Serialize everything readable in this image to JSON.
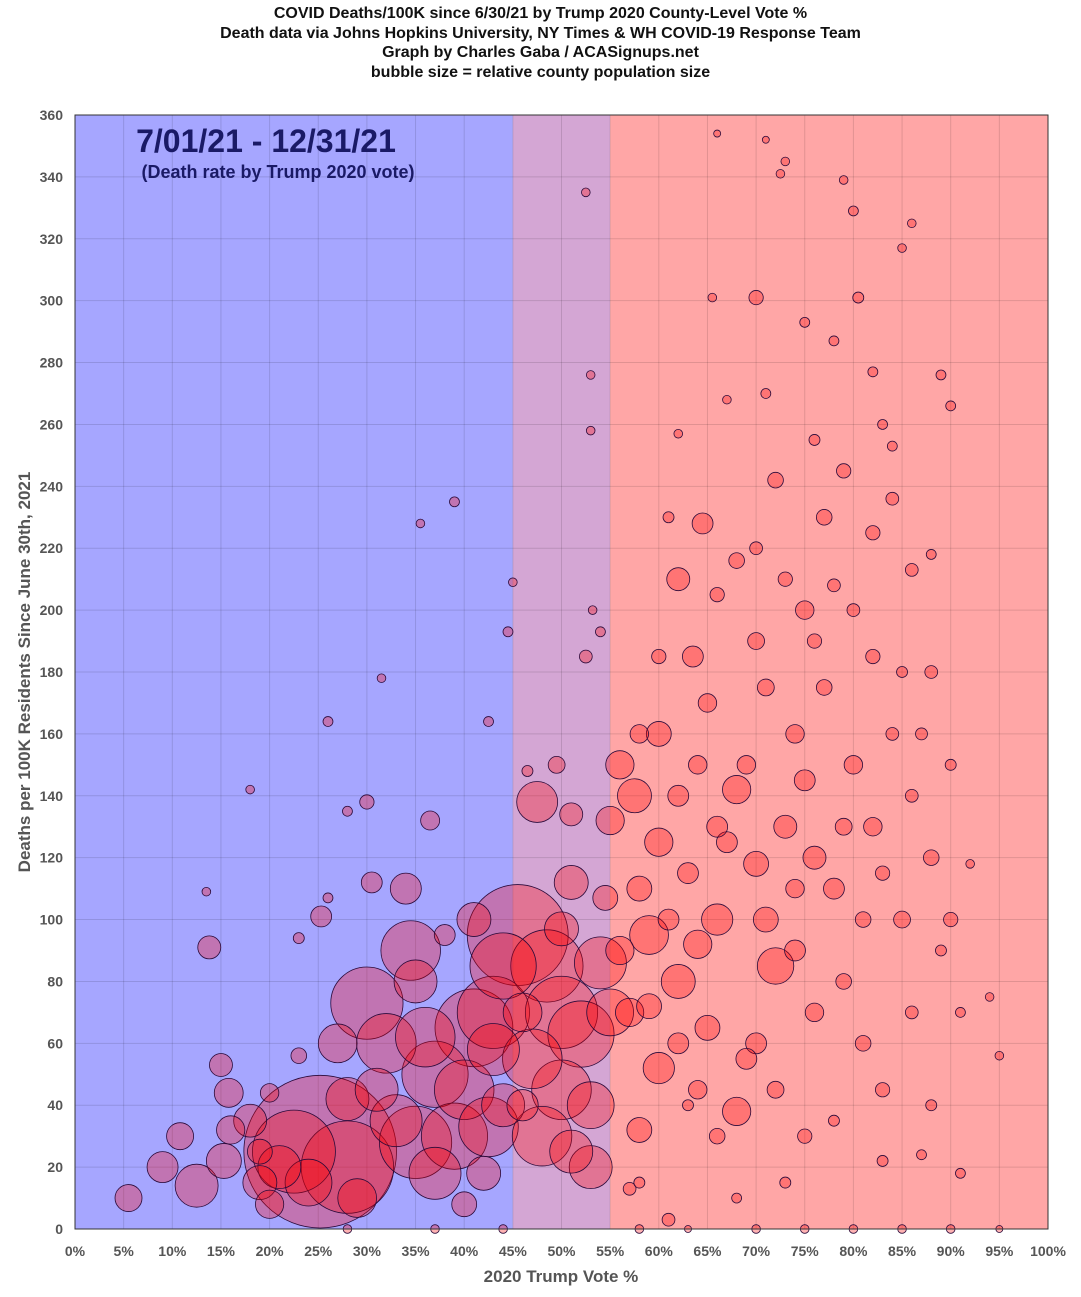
{
  "chart_data": {
    "type": "scatter",
    "title_lines": [
      "COVID Deaths/100K since 6/30/21 by Trump 2020 County-Level Vote %",
      "Death data via Johns Hopkins University, NY Times & WH COVID-19 Response Team",
      "Graph by Charles Gaba / ACASignups.net",
      "bubble size = relative county population size"
    ],
    "annotation": {
      "period": "7/01/21 - 12/31/21",
      "subtitle": "(Death rate by Trump 2020 vote)"
    },
    "xlabel": "2020 Trump Vote %",
    "ylabel": "Deaths per 100K Residents Since June 30th, 2021",
    "xlim": [
      0,
      100
    ],
    "ylim": [
      0,
      360
    ],
    "x_ticks": [
      "0%",
      "5%",
      "10%",
      "15%",
      "20%",
      "25%",
      "30%",
      "35%",
      "40%",
      "45%",
      "50%",
      "55%",
      "60%",
      "65%",
      "70%",
      "75%",
      "80%",
      "85%",
      "90%",
      "95%",
      "100%"
    ],
    "y_ticks": [
      "0",
      "20",
      "40",
      "60",
      "80",
      "100",
      "120",
      "140",
      "160",
      "180",
      "200",
      "220",
      "240",
      "260",
      "280",
      "300",
      "320",
      "340",
      "360"
    ],
    "grid": true,
    "bands": [
      {
        "from": 0,
        "to": 45,
        "color": "#a6a6ff"
      },
      {
        "from": 45,
        "to": 55,
        "color": "#d4a6d4"
      },
      {
        "from": 55,
        "to": 100,
        "color": "#ffa6a6"
      }
    ],
    "bubble_color": "#ff0000",
    "bubble_outline": "#2a0a3a",
    "point_fields": [
      "trump_vote_pct",
      "deaths_per_100k",
      "relative_population"
    ],
    "points": [
      [
        5.5,
        10,
        36
      ],
      [
        9,
        20,
        49
      ],
      [
        10.8,
        30,
        36
      ],
      [
        12.5,
        14,
        100
      ],
      [
        15.3,
        22,
        64
      ],
      [
        15.8,
        44,
        42
      ],
      [
        15,
        53,
        25
      ],
      [
        13.8,
        91,
        25
      ],
      [
        18,
        35,
        56
      ],
      [
        19,
        15,
        60
      ],
      [
        21,
        20,
        100
      ],
      [
        20,
        8,
        40
      ],
      [
        22.5,
        25,
        400
      ],
      [
        25.2,
        25,
        1400
      ],
      [
        28,
        20,
        500
      ],
      [
        28,
        42,
        100
      ],
      [
        30,
        73,
        300
      ],
      [
        30.5,
        112,
        20
      ],
      [
        34,
        110,
        49
      ],
      [
        34.5,
        90,
        200
      ],
      [
        32,
        60,
        200
      ],
      [
        35,
        28,
        300
      ],
      [
        37,
        50,
        250
      ],
      [
        37,
        18,
        150
      ],
      [
        39,
        30,
        250
      ],
      [
        40,
        45,
        200
      ],
      [
        41,
        65,
        350
      ],
      [
        42.5,
        33,
        200
      ],
      [
        43,
        58,
        150
      ],
      [
        44,
        85,
        250
      ],
      [
        45.5,
        95,
        600
      ],
      [
        36.5,
        132,
        16
      ],
      [
        30,
        138,
        8
      ],
      [
        25.3,
        101,
        20
      ],
      [
        18,
        142,
        2
      ],
      [
        13.5,
        109,
        2
      ],
      [
        26,
        164,
        3
      ],
      [
        39,
        235,
        3
      ],
      [
        35.5,
        228,
        2
      ],
      [
        31.5,
        178,
        2
      ],
      [
        42.5,
        164,
        3
      ],
      [
        28,
        135,
        3
      ],
      [
        23,
        94,
        4
      ],
      [
        26,
        107,
        3
      ],
      [
        41,
        100,
        60
      ],
      [
        38,
        95,
        20
      ],
      [
        35,
        80,
        100
      ],
      [
        43,
        70,
        300
      ],
      [
        27,
        60,
        80
      ],
      [
        31,
        45,
        100
      ],
      [
        33,
        35,
        150
      ],
      [
        36,
        62,
        200
      ],
      [
        24,
        15,
        120
      ],
      [
        29,
        10,
        80
      ],
      [
        19,
        25,
        30
      ],
      [
        16,
        32,
        40
      ],
      [
        20,
        44,
        15
      ],
      [
        23,
        56,
        10
      ],
      [
        44,
        40,
        100
      ],
      [
        42,
        18,
        60
      ],
      [
        40,
        8,
        30
      ],
      [
        47.5,
        138,
        90
      ],
      [
        48.5,
        85,
        300
      ],
      [
        50,
        70,
        300
      ],
      [
        51,
        112,
        60
      ],
      [
        52,
        63,
        250
      ],
      [
        50,
        45,
        200
      ],
      [
        48,
        30,
        200
      ],
      [
        53,
        20,
        100
      ],
      [
        54,
        86,
        150
      ],
      [
        53,
        40,
        120
      ],
      [
        46,
        70,
        80
      ],
      [
        47,
        55,
        200
      ],
      [
        49.5,
        150,
        12
      ],
      [
        51,
        134,
        25
      ],
      [
        52.5,
        185,
        6
      ],
      [
        54,
        193,
        3
      ],
      [
        44.5,
        193,
        3
      ],
      [
        46.5,
        148,
        4
      ],
      [
        52.5,
        335,
        2
      ],
      [
        53,
        276,
        2
      ],
      [
        53,
        258,
        2
      ],
      [
        53.2,
        200,
        2
      ],
      [
        45,
        209,
        2
      ],
      [
        50,
        97,
        60
      ],
      [
        54.5,
        107,
        30
      ],
      [
        55,
        132,
        40
      ],
      [
        55,
        70,
        120
      ],
      [
        51,
        25,
        100
      ],
      [
        46,
        40,
        50
      ],
      [
        56,
        150,
        40
      ],
      [
        57.5,
        140,
        60
      ],
      [
        59,
        95,
        80
      ],
      [
        60,
        160,
        30
      ],
      [
        62,
        210,
        25
      ],
      [
        64.5,
        228,
        20
      ],
      [
        63.5,
        185,
        20
      ],
      [
        60,
        125,
        40
      ],
      [
        62,
        80,
        60
      ],
      [
        64,
        92,
        40
      ],
      [
        66,
        100,
        50
      ],
      [
        68,
        142,
        40
      ],
      [
        70,
        118,
        30
      ],
      [
        72,
        85,
        70
      ],
      [
        68,
        38,
        40
      ],
      [
        60,
        52,
        50
      ],
      [
        58,
        32,
        30
      ],
      [
        57,
        70,
        40
      ],
      [
        65,
        65,
        30
      ],
      [
        70,
        60,
        20
      ],
      [
        73,
        130,
        25
      ],
      [
        75,
        145,
        20
      ],
      [
        76,
        120,
        25
      ],
      [
        78,
        110,
        20
      ],
      [
        80,
        150,
        15
      ],
      [
        82,
        130,
        15
      ],
      [
        85,
        100,
        12
      ],
      [
        88,
        120,
        10
      ],
      [
        90,
        100,
        8
      ],
      [
        75,
        200,
        15
      ],
      [
        77,
        230,
        10
      ],
      [
        79,
        245,
        8
      ],
      [
        82,
        225,
        8
      ],
      [
        84,
        236,
        6
      ],
      [
        86,
        213,
        6
      ],
      [
        88,
        180,
        6
      ],
      [
        90,
        150,
        4
      ],
      [
        92,
        118,
        2
      ],
      [
        94,
        75,
        2
      ],
      [
        95,
        56,
        2
      ],
      [
        91,
        18,
        3
      ],
      [
        87,
        24,
        3
      ],
      [
        83,
        22,
        4
      ],
      [
        78,
        35,
        4
      ],
      [
        73,
        15,
        4
      ],
      [
        68,
        10,
        3
      ],
      [
        63,
        40,
        4
      ],
      [
        61,
        3,
        6
      ],
      [
        58,
        15,
        4
      ],
      [
        57,
        13,
        6
      ],
      [
        66,
        354,
        1
      ],
      [
        71,
        352,
        1
      ],
      [
        73,
        345,
        2
      ],
      [
        72.5,
        341,
        2
      ],
      [
        79,
        339,
        2
      ],
      [
        80,
        329,
        3
      ],
      [
        86,
        325,
        2
      ],
      [
        85,
        317,
        2
      ],
      [
        80.5,
        301,
        4
      ],
      [
        70,
        301,
        8
      ],
      [
        65.5,
        301,
        2
      ],
      [
        75,
        293,
        3
      ],
      [
        78,
        287,
        3
      ],
      [
        82,
        277,
        3
      ],
      [
        89,
        276,
        3
      ],
      [
        90,
        266,
        3
      ],
      [
        84,
        253,
        3
      ],
      [
        67,
        268,
        2
      ],
      [
        71,
        270,
        3
      ],
      [
        76,
        255,
        4
      ],
      [
        62,
        257,
        2
      ],
      [
        72,
        242,
        10
      ],
      [
        68,
        216,
        10
      ],
      [
        70,
        190,
        12
      ],
      [
        65,
        170,
        15
      ],
      [
        67,
        125,
        20
      ],
      [
        71,
        100,
        30
      ],
      [
        74,
        90,
        20
      ],
      [
        76,
        70,
        15
      ],
      [
        79,
        80,
        10
      ],
      [
        81,
        60,
        10
      ],
      [
        83,
        45,
        8
      ],
      [
        86,
        70,
        6
      ],
      [
        88,
        40,
        4
      ],
      [
        89,
        90,
        4
      ],
      [
        91,
        70,
        3
      ],
      [
        84,
        160,
        6
      ],
      [
        82,
        185,
        8
      ],
      [
        77,
        175,
        10
      ],
      [
        74,
        160,
        15
      ],
      [
        71,
        175,
        12
      ],
      [
        69,
        150,
        15
      ],
      [
        66,
        130,
        20
      ],
      [
        63,
        115,
        20
      ],
      [
        61,
        100,
        20
      ],
      [
        58,
        110,
        30
      ],
      [
        56,
        90,
        40
      ],
      [
        59,
        72,
        30
      ],
      [
        62,
        60,
        20
      ],
      [
        64,
        45,
        15
      ],
      [
        66,
        30,
        10
      ],
      [
        69,
        55,
        20
      ],
      [
        72,
        45,
        12
      ],
      [
        75,
        30,
        8
      ],
      [
        74,
        110,
        15
      ],
      [
        79,
        130,
        12
      ],
      [
        81,
        100,
        10
      ],
      [
        83,
        115,
        8
      ],
      [
        86,
        140,
        6
      ],
      [
        87,
        160,
        5
      ],
      [
        85,
        180,
        4
      ],
      [
        80,
        200,
        6
      ],
      [
        78,
        208,
        6
      ],
      [
        76,
        190,
        8
      ],
      [
        73,
        210,
        8
      ],
      [
        70,
        220,
        6
      ],
      [
        66,
        205,
        8
      ],
      [
        64,
        150,
        15
      ],
      [
        62,
        140,
        20
      ],
      [
        58,
        160,
        15
      ],
      [
        60,
        185,
        8
      ],
      [
        61,
        230,
        4
      ],
      [
        83,
        260,
        3
      ],
      [
        88,
        218,
        3
      ],
      [
        70,
        0,
        2
      ],
      [
        75,
        0,
        2
      ],
      [
        80,
        0,
        2
      ],
      [
        85,
        0,
        2
      ],
      [
        90,
        0,
        2
      ],
      [
        95,
        0,
        1
      ],
      [
        63,
        0,
        1
      ],
      [
        58,
        0,
        2
      ],
      [
        28,
        0,
        2
      ],
      [
        37,
        0,
        2
      ],
      [
        44,
        0,
        2
      ]
    ]
  }
}
